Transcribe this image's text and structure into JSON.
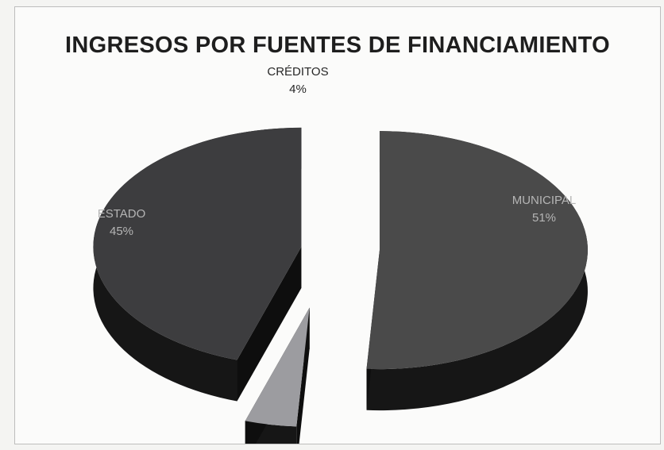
{
  "chart_data": {
    "type": "pie",
    "style": "3d-exploded",
    "title": "INGRESOS POR FUENTES DE FINANCIAMIENTO",
    "slices": [
      {
        "label": "MUNICIPAL",
        "value": 51,
        "value_label": "51%",
        "color": "#4a4a4a"
      },
      {
        "label": "CRÉDITOS",
        "value": 4,
        "value_label": "4%",
        "color": "#9c9ca0"
      },
      {
        "label": "ESTADO",
        "value": 45,
        "value_label": "45%",
        "color": "#3d3d3f"
      }
    ],
    "colors": {
      "side": "#161616",
      "label_dark": "#262626",
      "label_light": "#b5b5b5"
    }
  }
}
